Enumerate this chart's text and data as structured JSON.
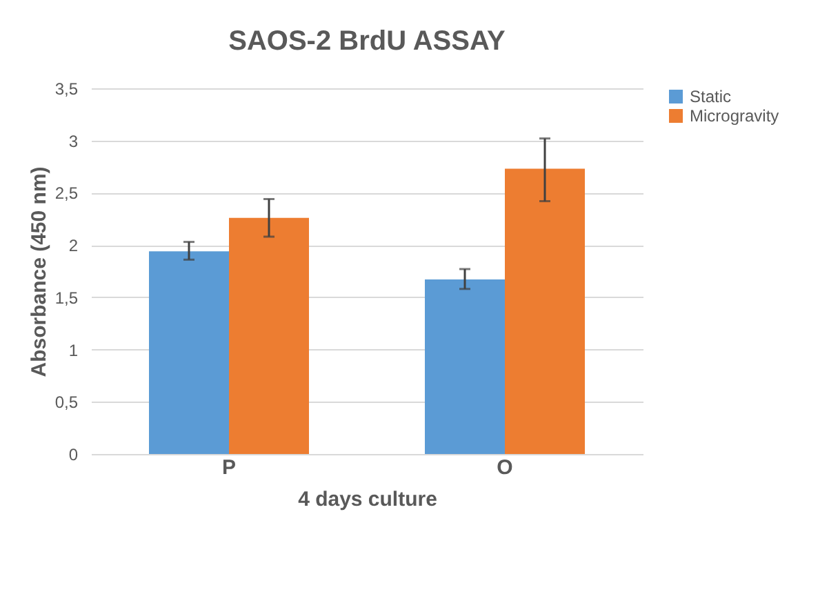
{
  "chart_data": {
    "type": "bar",
    "title": "SAOS-2  BrdU ASSAY",
    "xlabel": "4 days culture",
    "ylabel": "Absorbance (450 nm)",
    "categories": [
      "P",
      "O"
    ],
    "series": [
      {
        "name": "Static",
        "color": "#5b9bd5",
        "values": [
          1.94,
          1.67
        ],
        "errors": [
          [
            1.86,
            2.03
          ],
          [
            1.58,
            1.77
          ]
        ]
      },
      {
        "name": "Microgravity",
        "color": "#ed7d31",
        "values": [
          2.26,
          2.73
        ],
        "errors": [
          [
            2.08,
            2.44
          ],
          [
            2.42,
            3.02
          ]
        ]
      }
    ],
    "ylim": [
      0,
      3.5
    ],
    "yticks": [
      0,
      {
        "value": 0.5,
        "label": "0,5"
      },
      1,
      {
        "value": 1.5,
        "label": "1,5"
      },
      2,
      {
        "value": 2.5,
        "label": "2,5"
      },
      3,
      {
        "value": 3.5,
        "label": "3,5"
      }
    ],
    "grid": "y",
    "legend": "right"
  }
}
